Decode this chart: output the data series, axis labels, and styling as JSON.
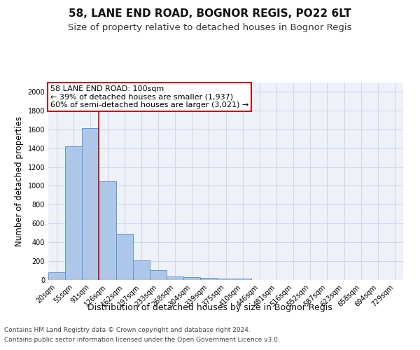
{
  "title1": "58, LANE END ROAD, BOGNOR REGIS, PO22 6LT",
  "title2": "Size of property relative to detached houses in Bognor Regis",
  "xlabel": "Distribution of detached houses by size in Bognor Regis",
  "ylabel": "Number of detached properties",
  "footnote1": "Contains HM Land Registry data © Crown copyright and database right 2024.",
  "footnote2": "Contains public sector information licensed under the Open Government Licence v3.0.",
  "bar_labels": [
    "20sqm",
    "55sqm",
    "91sqm",
    "126sqm",
    "162sqm",
    "197sqm",
    "233sqm",
    "268sqm",
    "304sqm",
    "339sqm",
    "375sqm",
    "410sqm",
    "446sqm",
    "481sqm",
    "516sqm",
    "552sqm",
    "587sqm",
    "623sqm",
    "658sqm",
    "694sqm",
    "729sqm"
  ],
  "bar_values": [
    80,
    1420,
    1610,
    1050,
    490,
    205,
    105,
    40,
    28,
    22,
    18,
    15,
    0,
    0,
    0,
    0,
    0,
    0,
    0,
    0,
    0
  ],
  "bar_color": "#aec6e8",
  "bar_edge_color": "#5b9bd5",
  "grid_color": "#d0d8e8",
  "bg_color": "#eef2f8",
  "annotation_line1": "58 LANE END ROAD: 100sqm",
  "annotation_line2": "← 39% of detached houses are smaller (1,937)",
  "annotation_line3": "60% of semi-detached houses are larger (3,021) →",
  "vline_x": 2.5,
  "vline_color": "#cc0000",
  "annotation_box_color": "#ffffff",
  "annotation_box_edge_color": "#cc0000",
  "ylim": [
    0,
    2100
  ],
  "yticks": [
    0,
    200,
    400,
    600,
    800,
    1000,
    1200,
    1400,
    1600,
    1800,
    2000
  ],
  "title1_fontsize": 11,
  "title2_fontsize": 9.5,
  "xlabel_fontsize": 9,
  "ylabel_fontsize": 8.5,
  "tick_fontsize": 7,
  "annotation_fontsize": 8,
  "footnote_fontsize": 6.5
}
